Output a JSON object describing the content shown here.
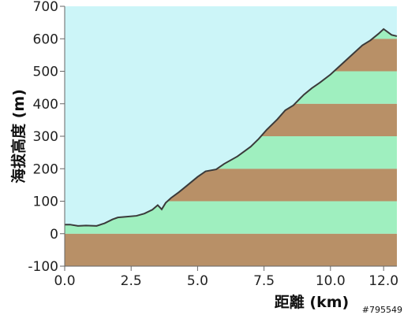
{
  "chart_data": {
    "type": "area",
    "xlabel": "距離 (km)",
    "ylabel": "海拔高度 (m)",
    "xlim": [
      0,
      12.5
    ],
    "ylim": [
      -100,
      700
    ],
    "x_ticks": [
      "0.0",
      "2.5",
      "5.0",
      "7.5",
      "10.0",
      "12.0"
    ],
    "x_tick_values": [
      0,
      2.5,
      5.0,
      7.5,
      10.0,
      12.0
    ],
    "y_ticks": [
      "-100",
      "0",
      "100",
      "200",
      "300",
      "400",
      "500",
      "600",
      "700"
    ],
    "y_tick_values": [
      -100,
      0,
      100,
      200,
      300,
      400,
      500,
      600,
      700
    ],
    "band_step": 100,
    "band_colors": [
      "#b89067",
      "#9fefbf"
    ],
    "sky_color": "#ccf5f8",
    "line_color": "#3a3a3a",
    "profile": {
      "x": [
        0,
        0.2,
        0.5,
        0.8,
        1.2,
        1.5,
        1.8,
        2.0,
        2.3,
        2.7,
        3.0,
        3.3,
        3.5,
        3.65,
        3.8,
        4.0,
        4.3,
        4.6,
        5.0,
        5.3,
        5.7,
        6.0,
        6.5,
        7.0,
        7.3,
        7.6,
        8.0,
        8.3,
        8.6,
        9.0,
        9.3,
        9.6,
        10.0,
        10.4,
        10.8,
        11.2,
        11.5,
        11.8,
        12.0,
        12.3,
        12.5
      ],
      "y": [
        28,
        28,
        24,
        25,
        24,
        32,
        44,
        50,
        52,
        55,
        62,
        74,
        88,
        75,
        95,
        110,
        128,
        148,
        175,
        192,
        198,
        215,
        238,
        268,
        292,
        320,
        352,
        380,
        395,
        428,
        448,
        465,
        490,
        520,
        550,
        580,
        595,
        615,
        630,
        612,
        608
      ]
    }
  },
  "watermark": "#795549"
}
